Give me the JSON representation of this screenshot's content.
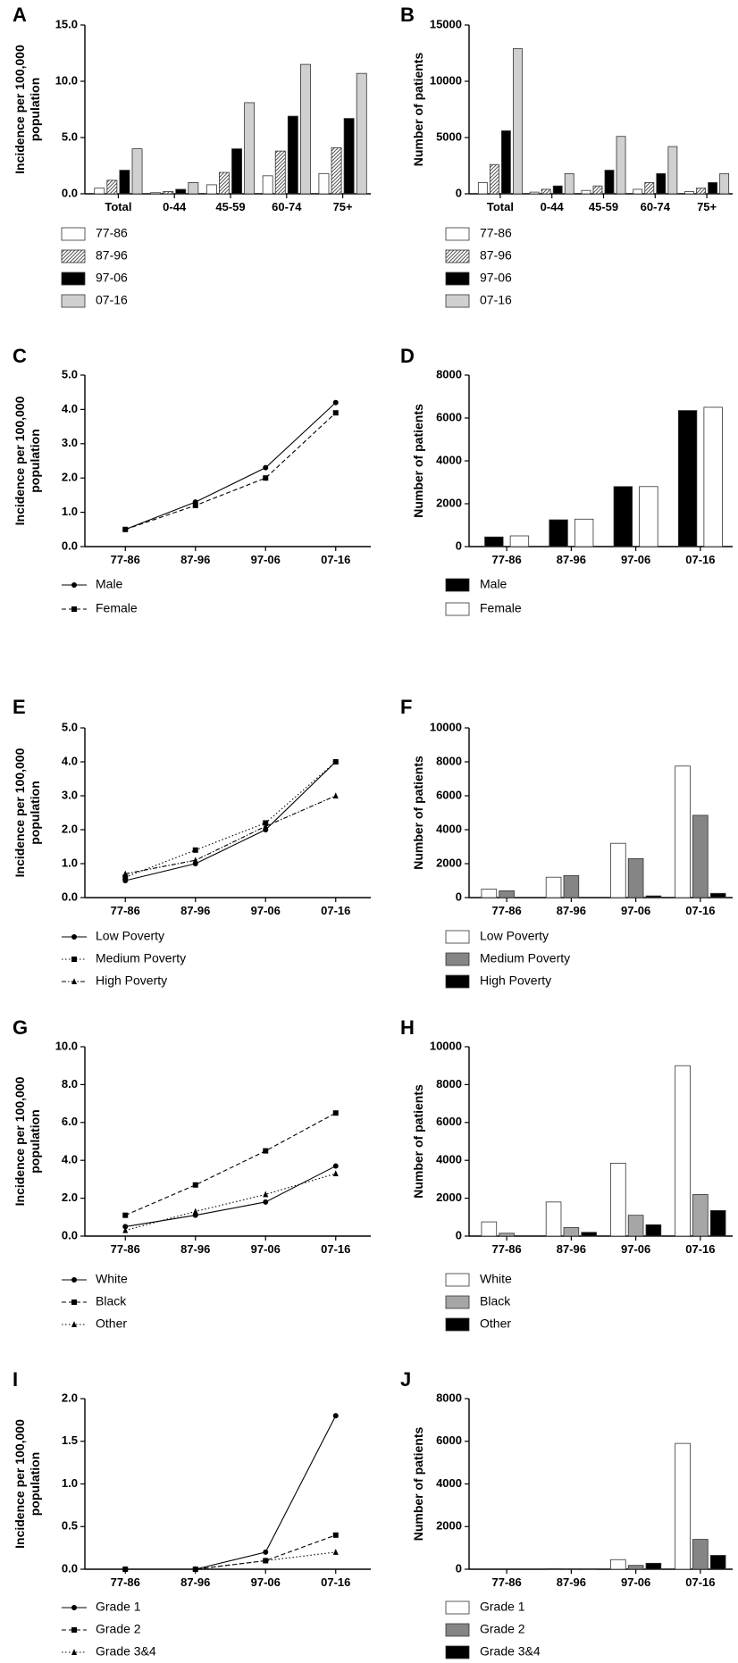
{
  "colors": {
    "white": "#ffffff",
    "hatch": "#bdbdbd",
    "black": "#000000",
    "light_gray": "#d0d0d0",
    "mid_gray": "#858585",
    "gray": "#a6a6a6",
    "axis": "#000000"
  },
  "chart_data": [
    {
      "panel": "A",
      "type": "bar",
      "ylabel": "Incidence per 100,000\npopulation",
      "categories": [
        "Total",
        "0-44",
        "45-59",
        "60-74",
        "75+"
      ],
      "ylim": [
        0,
        15
      ],
      "yticks": [
        "0.0",
        "5.0",
        "10.0",
        "15.0"
      ],
      "ytick_values": [
        0,
        5,
        10,
        15
      ],
      "series": [
        {
          "name": "77-86",
          "style": "white",
          "values": [
            0.5,
            0.1,
            0.8,
            1.6,
            1.8
          ]
        },
        {
          "name": "87-96",
          "style": "hatch",
          "values": [
            1.2,
            0.2,
            1.9,
            3.8,
            4.1
          ]
        },
        {
          "name": "97-06",
          "style": "black",
          "values": [
            2.1,
            0.4,
            4.0,
            6.9,
            6.7
          ]
        },
        {
          "name": "07-16",
          "style": "light_gray",
          "values": [
            4.0,
            1.0,
            8.1,
            11.5,
            10.7
          ]
        }
      ]
    },
    {
      "panel": "B",
      "type": "bar",
      "ylabel": "Number of patients",
      "categories": [
        "Total",
        "0-44",
        "45-59",
        "60-74",
        "75+"
      ],
      "ylim": [
        0,
        15000
      ],
      "yticks": [
        "0",
        "5000",
        "10000",
        "15000"
      ],
      "ytick_values": [
        0,
        5000,
        10000,
        15000
      ],
      "series": [
        {
          "name": "77-86",
          "style": "white",
          "values": [
            1000,
            150,
            300,
            400,
            200
          ]
        },
        {
          "name": "87-96",
          "style": "hatch",
          "values": [
            2600,
            400,
            700,
            1000,
            500
          ]
        },
        {
          "name": "97-06",
          "style": "black",
          "values": [
            5600,
            700,
            2100,
            1800,
            1000
          ]
        },
        {
          "name": "07-16",
          "style": "light_gray",
          "values": [
            12900,
            1800,
            5100,
            4200,
            1800
          ]
        }
      ]
    },
    {
      "panel": "C",
      "type": "line",
      "ylabel": "Incidence per 100,000\npopulation",
      "categories": [
        "77-86",
        "87-96",
        "97-06",
        "07-16"
      ],
      "ylim": [
        0,
        5
      ],
      "yticks": [
        "0.0",
        "1.0",
        "2.0",
        "3.0",
        "4.0",
        "5.0"
      ],
      "ytick_values": [
        0,
        1,
        2,
        3,
        4,
        5
      ],
      "series": [
        {
          "name": "Male",
          "marker": "circle",
          "dash": "solid",
          "values": [
            0.5,
            1.3,
            2.3,
            4.2
          ]
        },
        {
          "name": "Female",
          "marker": "square",
          "dash": "dashed",
          "values": [
            0.5,
            1.2,
            2.0,
            3.9
          ]
        }
      ]
    },
    {
      "panel": "D",
      "type": "bar",
      "ylabel": "Number of patients",
      "categories": [
        "77-86",
        "87-96",
        "97-06",
        "07-16"
      ],
      "ylim": [
        0,
        8000
      ],
      "yticks": [
        "0",
        "2000",
        "4000",
        "6000",
        "8000"
      ],
      "ytick_values": [
        0,
        2000,
        4000,
        6000,
        8000
      ],
      "series": [
        {
          "name": "Male",
          "style": "black",
          "values": [
            450,
            1250,
            2800,
            6350
          ]
        },
        {
          "name": "Female",
          "style": "white",
          "values": [
            500,
            1280,
            2800,
            6500
          ]
        }
      ]
    },
    {
      "panel": "E",
      "type": "line",
      "ylabel": "Incidence per 100,000\npopulation",
      "categories": [
        "77-86",
        "87-96",
        "97-06",
        "07-16"
      ],
      "ylim": [
        0,
        5
      ],
      "yticks": [
        "0.0",
        "1.0",
        "2.0",
        "3.0",
        "4.0",
        "5.0"
      ],
      "ytick_values": [
        0,
        1,
        2,
        3,
        4,
        5
      ],
      "series": [
        {
          "name": "Low Poverty",
          "marker": "circle",
          "dash": "solid",
          "values": [
            0.5,
            1.0,
            2.0,
            4.0
          ]
        },
        {
          "name": "Medium Poverty",
          "marker": "square",
          "dash": "dotted",
          "values": [
            0.6,
            1.4,
            2.2,
            4.0
          ]
        },
        {
          "name": "High Poverty",
          "marker": "triangle",
          "dash": "dashdot",
          "values": [
            0.7,
            1.1,
            2.1,
            3.0
          ]
        }
      ]
    },
    {
      "panel": "F",
      "type": "bar",
      "ylabel": "Number of patients",
      "categories": [
        "77-86",
        "87-96",
        "97-06",
        "07-16"
      ],
      "ylim": [
        0,
        10000
      ],
      "yticks": [
        "0",
        "2000",
        "4000",
        "6000",
        "8000",
        "10000"
      ],
      "ytick_values": [
        0,
        2000,
        4000,
        6000,
        8000,
        10000
      ],
      "series": [
        {
          "name": "Low Poverty",
          "style": "white",
          "values": [
            500,
            1200,
            3200,
            7750
          ]
        },
        {
          "name": "Medium Poverty",
          "style": "mid_gray",
          "values": [
            400,
            1300,
            2300,
            4850
          ]
        },
        {
          "name": "High Poverty",
          "style": "black",
          "values": [
            0,
            0,
            100,
            250
          ]
        }
      ]
    },
    {
      "panel": "G",
      "type": "line",
      "ylabel": "Incidence per 100,000\npopulation",
      "categories": [
        "77-86",
        "87-96",
        "97-06",
        "07-16"
      ],
      "ylim": [
        0,
        10
      ],
      "yticks": [
        "0.0",
        "2.0",
        "4.0",
        "6.0",
        "8.0",
        "10.0"
      ],
      "ytick_values": [
        0,
        2,
        4,
        6,
        8,
        10
      ],
      "series": [
        {
          "name": "White",
          "marker": "circle",
          "dash": "solid",
          "values": [
            0.5,
            1.1,
            1.8,
            3.7
          ]
        },
        {
          "name": "Black",
          "marker": "square",
          "dash": "dashed",
          "values": [
            1.1,
            2.7,
            4.5,
            6.5
          ]
        },
        {
          "name": "Other",
          "marker": "triangle",
          "dash": "dotted",
          "values": [
            0.3,
            1.3,
            2.2,
            3.3
          ]
        }
      ]
    },
    {
      "panel": "H",
      "type": "bar",
      "ylabel": "Number of patients",
      "categories": [
        "77-86",
        "87-96",
        "97-06",
        "07-16"
      ],
      "ylim": [
        0,
        10000
      ],
      "yticks": [
        "0",
        "2000",
        "4000",
        "6000",
        "8000",
        "10000"
      ],
      "ytick_values": [
        0,
        2000,
        4000,
        6000,
        8000,
        10000
      ],
      "series": [
        {
          "name": "White",
          "style": "white",
          "values": [
            750,
            1800,
            3850,
            9000
          ]
        },
        {
          "name": "Black",
          "style": "gray",
          "values": [
            150,
            450,
            1100,
            2200
          ]
        },
        {
          "name": "Other",
          "style": "black",
          "values": [
            0,
            200,
            600,
            1350
          ]
        }
      ]
    },
    {
      "panel": "I",
      "type": "line",
      "ylabel": "Incidence per 100,000\npopulation",
      "categories": [
        "77-86",
        "87-96",
        "97-06",
        "07-16"
      ],
      "ylim": [
        0,
        2
      ],
      "yticks": [
        "0.0",
        "0.5",
        "1.0",
        "1.5",
        "2.0"
      ],
      "ytick_values": [
        0,
        0.5,
        1,
        1.5,
        2
      ],
      "series": [
        {
          "name": "Grade 1",
          "marker": "circle",
          "dash": "solid",
          "values": [
            0,
            0,
            0.2,
            1.8
          ]
        },
        {
          "name": "Grade 2",
          "marker": "square",
          "dash": "dashed",
          "values": [
            0,
            0,
            0.1,
            0.4
          ]
        },
        {
          "name": "Grade 3&4",
          "marker": "triangle",
          "dash": "dotted",
          "values": [
            0,
            0,
            0.1,
            0.2
          ]
        }
      ]
    },
    {
      "panel": "J",
      "type": "bar",
      "ylabel": "Number of patients",
      "categories": [
        "77-86",
        "87-96",
        "97-06",
        "07-16"
      ],
      "ylim": [
        0,
        8000
      ],
      "yticks": [
        "0",
        "2000",
        "4000",
        "6000",
        "8000"
      ],
      "ytick_values": [
        0,
        2000,
        4000,
        6000,
        8000
      ],
      "series": [
        {
          "name": "Grade 1",
          "style": "white",
          "values": [
            0,
            30,
            450,
            5900
          ]
        },
        {
          "name": "Grade 2",
          "style": "mid_gray",
          "values": [
            0,
            20,
            180,
            1400
          ]
        },
        {
          "name": "Grade 3&4",
          "style": "black",
          "values": [
            0,
            20,
            280,
            650
          ]
        }
      ]
    }
  ]
}
